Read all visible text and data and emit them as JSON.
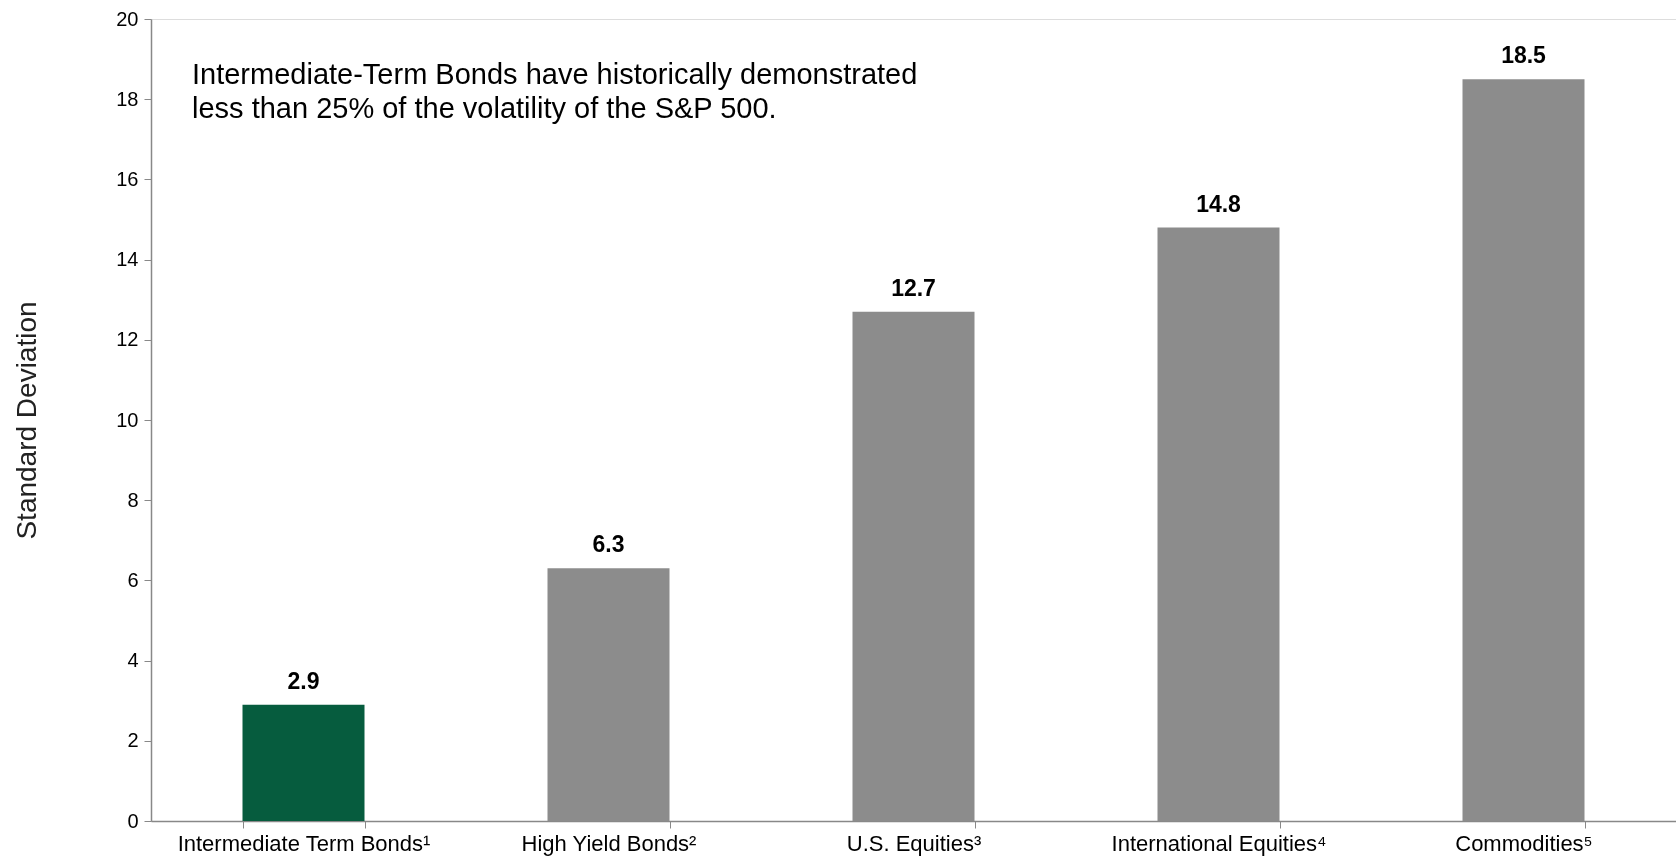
{
  "chart_data": {
    "type": "bar",
    "ylabel": "Standard Deviation",
    "categories": [
      "Intermediate Term Bonds¹",
      "High Yield Bonds²",
      "U.S. Equities³",
      "International Equities⁴",
      "Commodities⁵"
    ],
    "values": [
      2.9,
      6.3,
      12.7,
      14.8,
      18.5
    ],
    "colors": [
      "#065c3e",
      "#8c8c8c",
      "#8c8c8c",
      "#8c8c8c",
      "#8c8c8c"
    ],
    "ylim": [
      0,
      20
    ],
    "yticks": [
      0,
      2,
      4,
      6,
      8,
      10,
      12,
      14,
      16,
      18,
      20
    ],
    "grid": false,
    "data_labels": true,
    "annotations": [
      "Intermediate-Term Bonds have historically demonstrated less than 25% of the volatility of the S&P 500."
    ]
  }
}
